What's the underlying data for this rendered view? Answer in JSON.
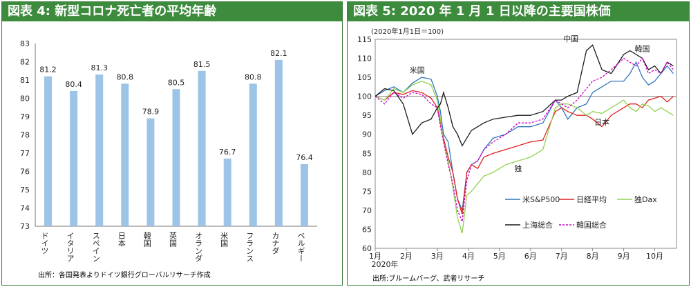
{
  "panels": {
    "left_title": "図表 4: 新型コロナ死亡者の平均年齢",
    "left_source": "出所：各国発表よりドイツ銀行グローバルリサーチ作成",
    "right_title": "図表 5: 2020 年 1 月 1 日以降の主要国株価",
    "right_source": "出所:ブルームバーグ、武者リサーチ"
  },
  "colors": {
    "header_bg": "#3d8b3d",
    "bar_fill": "#9dc3e6",
    "sp500": "#2e75b6",
    "nikkei": "#e02020",
    "dax": "#92d050",
    "shanghai": "#1a1a1a",
    "kospi": "#cc00cc"
  },
  "chart_data": [
    {
      "type": "bar",
      "title": "図表 4: 新型コロナ死亡者の平均年齢",
      "categories": [
        "ドイツ",
        "イタリア",
        "スペイン",
        "日本",
        "韓国",
        "英国",
        "オランダ",
        "米国",
        "フランス",
        "カナダ",
        "ベルギー"
      ],
      "values": [
        81.2,
        80.4,
        81.3,
        80.8,
        78.9,
        80.5,
        81.5,
        76.7,
        80.8,
        82.1,
        76.4
      ],
      "ylim": [
        73,
        83
      ],
      "yticks": [
        73,
        74,
        75,
        76,
        77,
        78,
        79,
        80,
        81,
        82,
        83
      ],
      "grid": false,
      "data_labels": true
    },
    {
      "type": "line",
      "title": "図表 5: 2020 年 1 月 1 日以降の主要国株価",
      "index_note": "(2020年1月1日＝100)",
      "x_tick_labels": [
        "1月",
        "2月",
        "3月",
        "4月",
        "5月",
        "6月",
        "7月",
        "8月",
        "9月",
        "10月"
      ],
      "x_year_label": "2020年",
      "x_range": [
        0,
        9.7
      ],
      "ylim": [
        60,
        115
      ],
      "yticks": [
        60,
        65,
        70,
        75,
        80,
        85,
        90,
        95,
        100,
        105,
        110,
        115
      ],
      "reference_line": 100,
      "legend_placement": "bottom-right",
      "annotations": [
        {
          "text": "米国",
          "x": 1.35,
          "y": 106.2
        },
        {
          "text": "中国",
          "x": 6.3,
          "y": 114.5
        },
        {
          "text": "韓国",
          "x": 8.6,
          "y": 111.8
        },
        {
          "text": "日本",
          "x": 7.3,
          "y": 92.5
        },
        {
          "text": "独",
          "x": 4.6,
          "y": 80.3
        }
      ],
      "series": [
        {
          "name": "米S&P500",
          "color": "#2e75b6",
          "x": [
            0,
            0.3,
            0.6,
            0.9,
            1.2,
            1.5,
            1.8,
            2.0,
            2.1,
            2.2,
            2.35,
            2.5,
            2.65,
            2.8,
            2.95,
            3.1,
            3.3,
            3.5,
            3.8,
            4.2,
            4.6,
            5.0,
            5.4,
            5.8,
            6.0,
            6.2,
            6.5,
            6.8,
            7.0,
            7.3,
            7.6,
            8.0,
            8.2,
            8.4,
            8.6,
            8.8,
            9.0,
            9.2,
            9.4,
            9.6
          ],
          "y": [
            100,
            101.5,
            102.5,
            101,
            103.5,
            105,
            104.5,
            100,
            96,
            90,
            88,
            80,
            73,
            70,
            80,
            82,
            83,
            86,
            89,
            90,
            92,
            92,
            93,
            99,
            97,
            94,
            97,
            98,
            101,
            102.5,
            104,
            104,
            106,
            109,
            105,
            103,
            104,
            106,
            108,
            106
          ]
        },
        {
          "name": "日経平均",
          "color": "#e02020",
          "x": [
            0,
            0.3,
            0.6,
            0.9,
            1.2,
            1.5,
            1.8,
            2.0,
            2.1,
            2.2,
            2.35,
            2.5,
            2.65,
            2.8,
            2.95,
            3.1,
            3.3,
            3.5,
            3.8,
            4.2,
            4.6,
            5.0,
            5.4,
            5.8,
            6.0,
            6.2,
            6.5,
            6.8,
            7.0,
            7.3,
            7.6,
            8.0,
            8.2,
            8.4,
            8.6,
            8.8,
            9.0,
            9.2,
            9.4,
            9.6
          ],
          "y": [
            100,
            99,
            101,
            100.5,
            101.5,
            101,
            99.5,
            97,
            93,
            89,
            84,
            80,
            73,
            69,
            80,
            82,
            81,
            84,
            85,
            86,
            87,
            88,
            88.5,
            96,
            97,
            96,
            95,
            95,
            94,
            92,
            95,
            97,
            98,
            98,
            97,
            99,
            99.5,
            100,
            98.5,
            100
          ]
        },
        {
          "name": "独Dax",
          "color": "#92d050",
          "x": [
            0,
            0.3,
            0.6,
            0.9,
            1.2,
            1.5,
            1.8,
            2.0,
            2.1,
            2.2,
            2.35,
            2.5,
            2.65,
            2.8,
            2.95,
            3.1,
            3.3,
            3.5,
            3.8,
            4.2,
            4.6,
            5.0,
            5.4,
            5.8,
            6.0,
            6.2,
            6.5,
            6.8,
            7.0,
            7.3,
            7.6,
            8.0,
            8.2,
            8.4,
            8.6,
            8.8,
            9.0,
            9.2,
            9.4,
            9.6
          ],
          "y": [
            100,
            99,
            102,
            101,
            103,
            104,
            103,
            99,
            94,
            88,
            83,
            76,
            68,
            64,
            74,
            75,
            77,
            79,
            80,
            82,
            83,
            84,
            86,
            97,
            98,
            98,
            97,
            95,
            96,
            95.5,
            97,
            99,
            97,
            96,
            98,
            97.5,
            96,
            97,
            96,
            95
          ]
        },
        {
          "name": "上海総合",
          "color": "#1a1a1a",
          "x": [
            0,
            0.3,
            0.6,
            0.9,
            1.2,
            1.5,
            1.8,
            2.0,
            2.1,
            2.2,
            2.35,
            2.5,
            2.65,
            2.8,
            2.95,
            3.1,
            3.3,
            3.5,
            3.8,
            4.2,
            4.6,
            5.0,
            5.4,
            5.8,
            6.0,
            6.2,
            6.5,
            6.8,
            7.0,
            7.3,
            7.6,
            8.0,
            8.2,
            8.4,
            8.6,
            8.8,
            9.0,
            9.2,
            9.4,
            9.6
          ],
          "y": [
            100,
            102,
            101.5,
            98,
            90,
            93,
            94,
            97,
            98,
            101,
            97,
            92,
            90,
            87,
            89,
            91,
            92,
            93,
            94,
            94.5,
            95,
            95,
            96,
            99,
            99,
            100,
            101,
            112,
            113.5,
            107,
            106,
            111,
            112,
            111,
            110,
            107,
            108,
            106,
            109,
            108
          ]
        },
        {
          "name": "韓国総合",
          "color": "#cc00cc",
          "x": [
            0,
            0.3,
            0.6,
            0.9,
            1.2,
            1.5,
            1.8,
            2.0,
            2.1,
            2.2,
            2.35,
            2.5,
            2.65,
            2.8,
            2.95,
            3.1,
            3.3,
            3.5,
            3.8,
            4.2,
            4.6,
            5.0,
            5.4,
            5.8,
            6.0,
            6.2,
            6.5,
            6.8,
            7.0,
            7.3,
            7.6,
            8.0,
            8.2,
            8.4,
            8.6,
            8.8,
            9.0,
            9.2,
            9.4,
            9.6
          ],
          "y": [
            100,
            98,
            101,
            99.5,
            101,
            100.5,
            98,
            97,
            92,
            88,
            82,
            77,
            70,
            67,
            78,
            82,
            83,
            86,
            88,
            90,
            93,
            93,
            94,
            99,
            98,
            97,
            99,
            102,
            104,
            105,
            107,
            110,
            109,
            108,
            110,
            106,
            107,
            106,
            109,
            107
          ]
        }
      ]
    }
  ]
}
